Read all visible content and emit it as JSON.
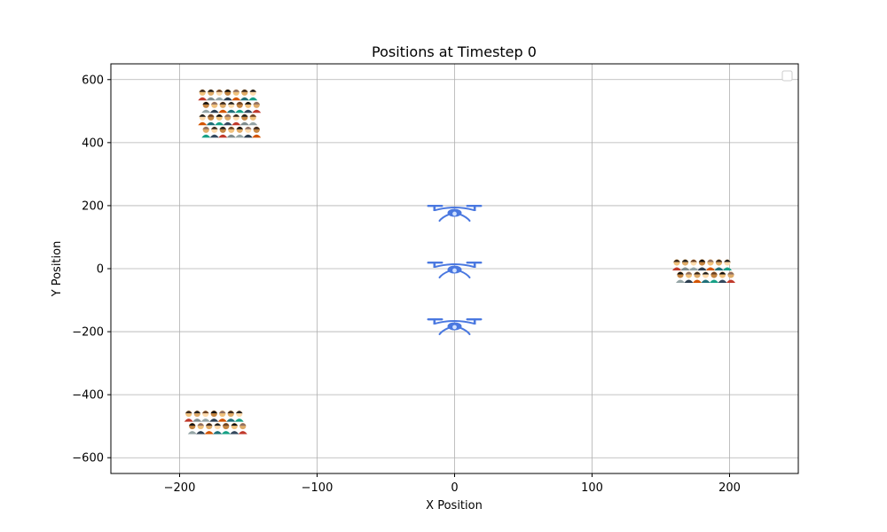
{
  "chart_data": {
    "type": "scatter",
    "title": "Positions at Timestep 0",
    "xlabel": "X Position",
    "ylabel": "Y Position",
    "xlim": [
      -250,
      250
    ],
    "ylim": [
      -650,
      650
    ],
    "x_ticks": [
      -200,
      -100,
      0,
      100,
      200
    ],
    "x_tick_labels": [
      "−200",
      "−100",
      "0",
      "100",
      "200"
    ],
    "y_ticks": [
      -600,
      -400,
      -200,
      0,
      200,
      400,
      600
    ],
    "y_tick_labels": [
      "−600",
      "−400",
      "−200",
      "0",
      "200",
      "400",
      "600"
    ],
    "grid": true,
    "legend": {
      "placement": "top-right",
      "entries": []
    },
    "series": [
      {
        "marker": "drone-icon",
        "color": "#4a78e0",
        "points": [
          {
            "x": 0,
            "y": 180
          },
          {
            "x": 0,
            "y": 0
          },
          {
            "x": 0,
            "y": -180
          }
        ]
      },
      {
        "marker": "people-crowd-icon",
        "points": [
          {
            "x": -165,
            "y": 500,
            "rows": 4
          },
          {
            "x": 180,
            "y": 0,
            "rows": 2
          },
          {
            "x": -175,
            "y": -480,
            "rows": 2
          }
        ]
      }
    ]
  }
}
